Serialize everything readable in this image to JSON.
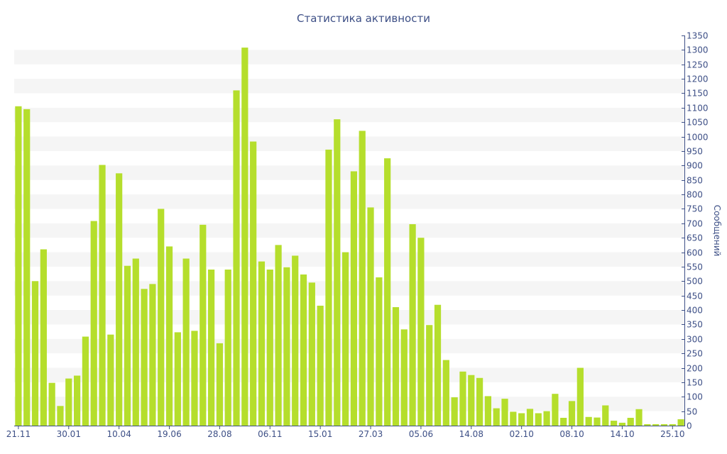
{
  "chart_data": {
    "type": "bar",
    "title": "Статистика активности",
    "xlabel": "",
    "ylabel": "Сообщений",
    "ylim": [
      0,
      1350
    ],
    "y_tick_step": 50,
    "y_axis_side": "right",
    "grid": "alternating horizontal bands",
    "bar_color": "#b5de2c",
    "text_color": "#3d4f86",
    "x_tick_labels": [
      {
        "index": 0,
        "label": "21.11"
      },
      {
        "index": 6,
        "label": "30.01"
      },
      {
        "index": 12,
        "label": "10.04"
      },
      {
        "index": 18,
        "label": "19.06"
      },
      {
        "index": 24,
        "label": "28.08"
      },
      {
        "index": 30,
        "label": "06.11"
      },
      {
        "index": 36,
        "label": "15.01"
      },
      {
        "index": 42,
        "label": "27.03"
      },
      {
        "index": 48,
        "label": "05.06"
      },
      {
        "index": 54,
        "label": "14.08"
      },
      {
        "index": 60,
        "label": "02.10"
      },
      {
        "index": 66,
        "label": "08.10"
      },
      {
        "index": 72,
        "label": "14.10"
      },
      {
        "index": 78,
        "label": "25.10"
      }
    ],
    "values": [
      1105,
      1095,
      500,
      610,
      148,
      68,
      163,
      173,
      308,
      708,
      902,
      315,
      873,
      553,
      578,
      473,
      490,
      750,
      620,
      323,
      578,
      328,
      695,
      540,
      285,
      540,
      1160,
      1308,
      983,
      568,
      540,
      625,
      548,
      588,
      523,
      495,
      415,
      955,
      1060,
      600,
      880,
      1020,
      755,
      513,
      925,
      410,
      333,
      697,
      650,
      348,
      418,
      227,
      98,
      187,
      175,
      165,
      102,
      60,
      93,
      48,
      43,
      58,
      43,
      50,
      110,
      27,
      85,
      200,
      30,
      28,
      70,
      17,
      10,
      27,
      57,
      5,
      5,
      5,
      5,
      22
    ]
  }
}
